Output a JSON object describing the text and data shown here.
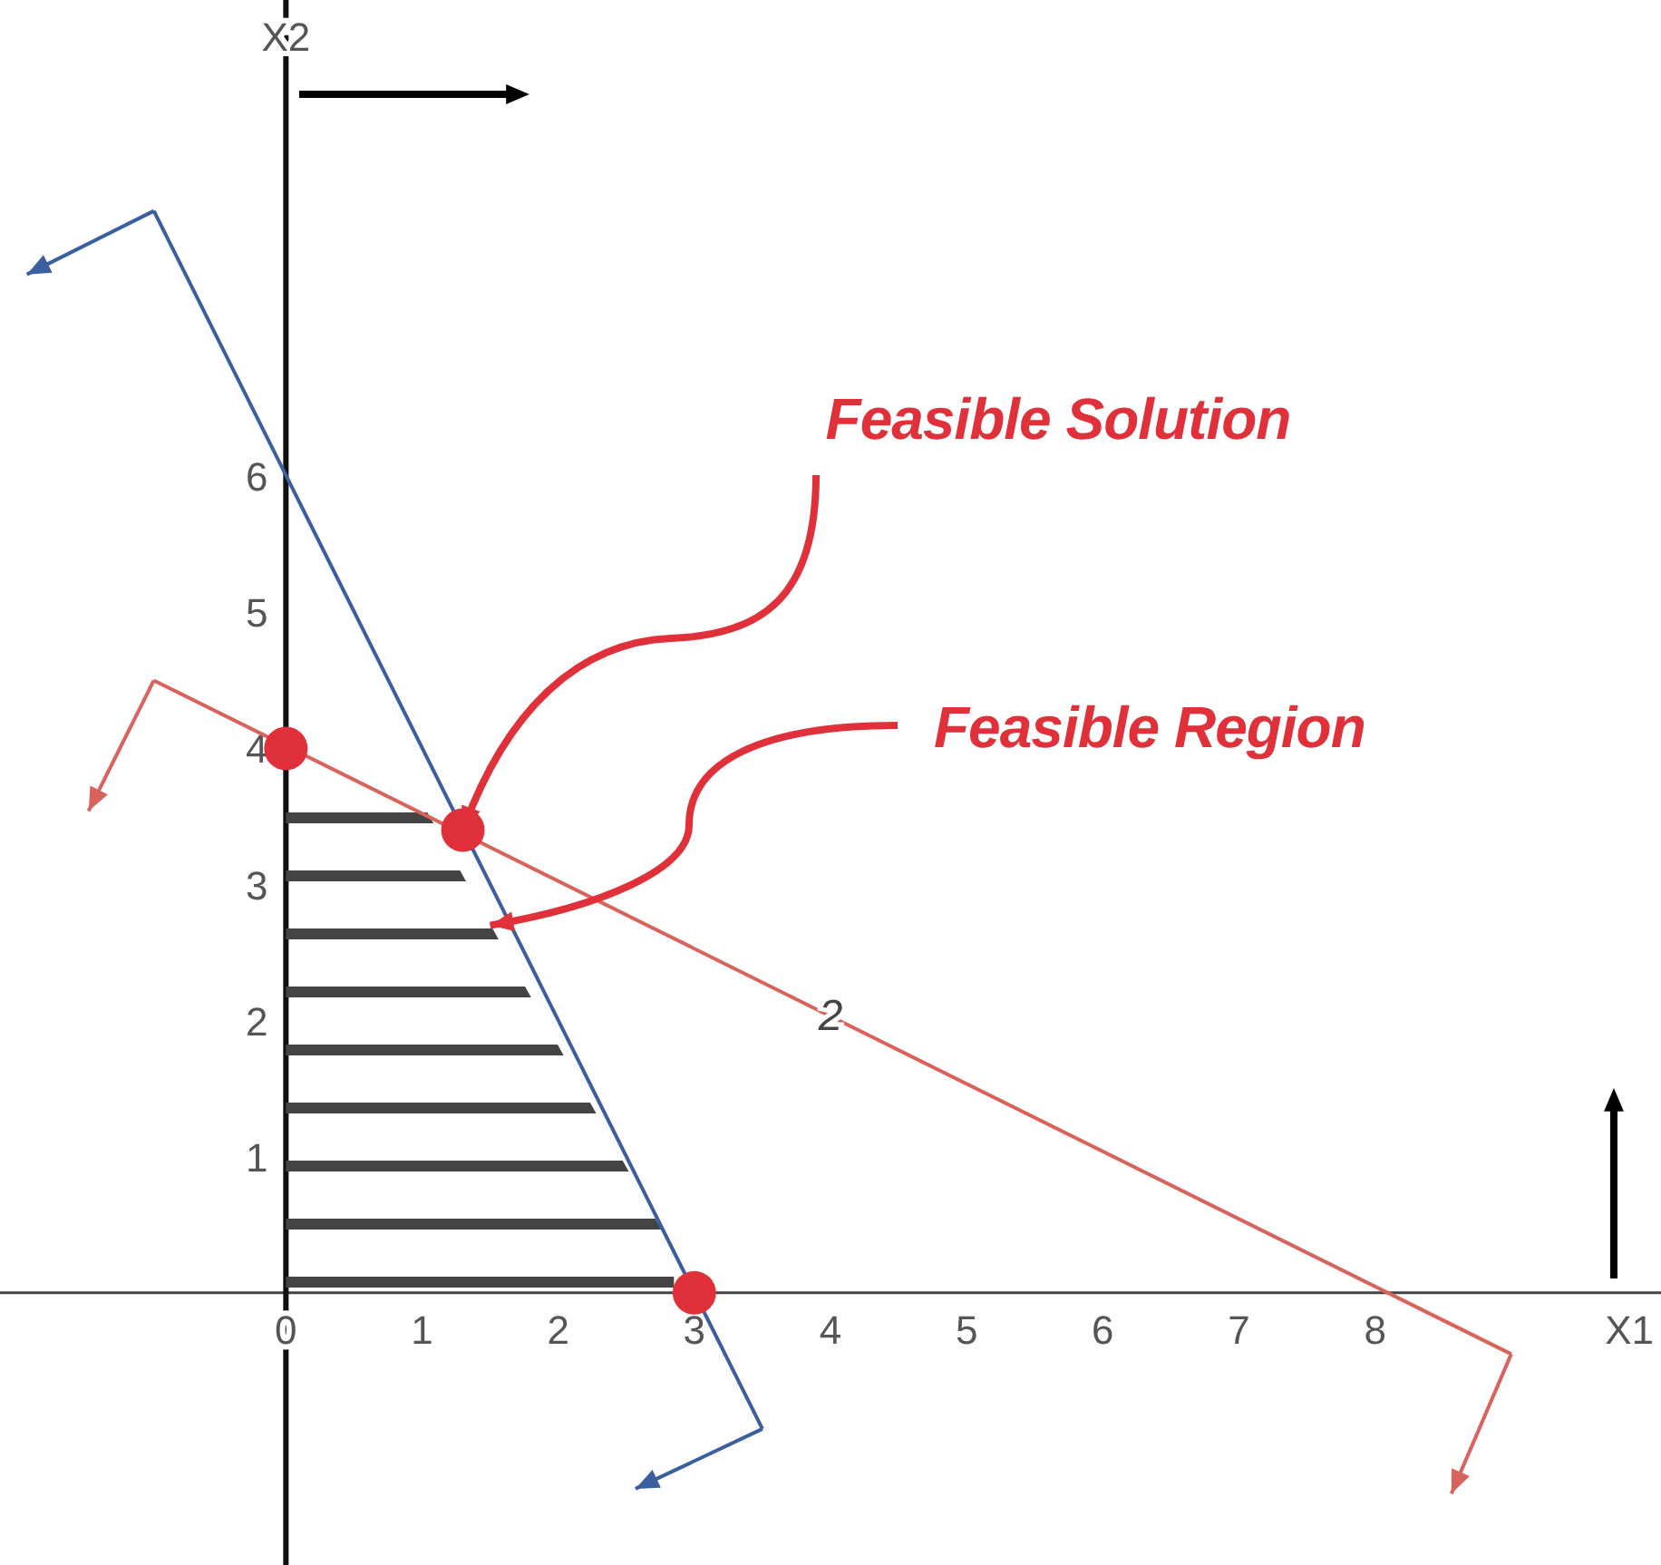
{
  "chart_data": {
    "type": "line",
    "xlabel": "X1",
    "ylabel": "X2",
    "xlim": [
      -2.1,
      10.1
    ],
    "ylim": [
      -2,
      9.5
    ],
    "xticks": [
      0,
      1,
      2,
      3,
      4,
      5,
      6,
      7,
      8
    ],
    "yticks": [
      1,
      2,
      3,
      4,
      5,
      6
    ],
    "series": [
      {
        "type": "area",
        "color": "#444444",
        "x": [
          0,
          1.0,
          2.85
        ],
        "values": [
          3.6,
          3.6,
          0.3
        ]
      },
      {
        "color": "#3b5f9e",
        "x": [
          -0.97,
          3.5
        ],
        "values": [
          7.95,
          -1
        ]
      },
      {
        "color": "#d9625c",
        "x": [
          -0.97,
          9
        ],
        "values": [
          4.5,
          -0.45
        ]
      },
      {
        "type": "scatter",
        "color": "#e0303a",
        "x": [
          0,
          1.3,
          3
        ],
        "values": [
          4,
          3.4,
          0
        ]
      }
    ],
    "annotations": [
      {
        "text": "Feasible Solution",
        "x": 1.3,
        "y": 3.4
      },
      {
        "text": "Feasible Region",
        "x": 1.5,
        "y": 2.7
      },
      {
        "text": "2",
        "x": 4,
        "y": 2
      }
    ],
    "line_style": "solid"
  }
}
